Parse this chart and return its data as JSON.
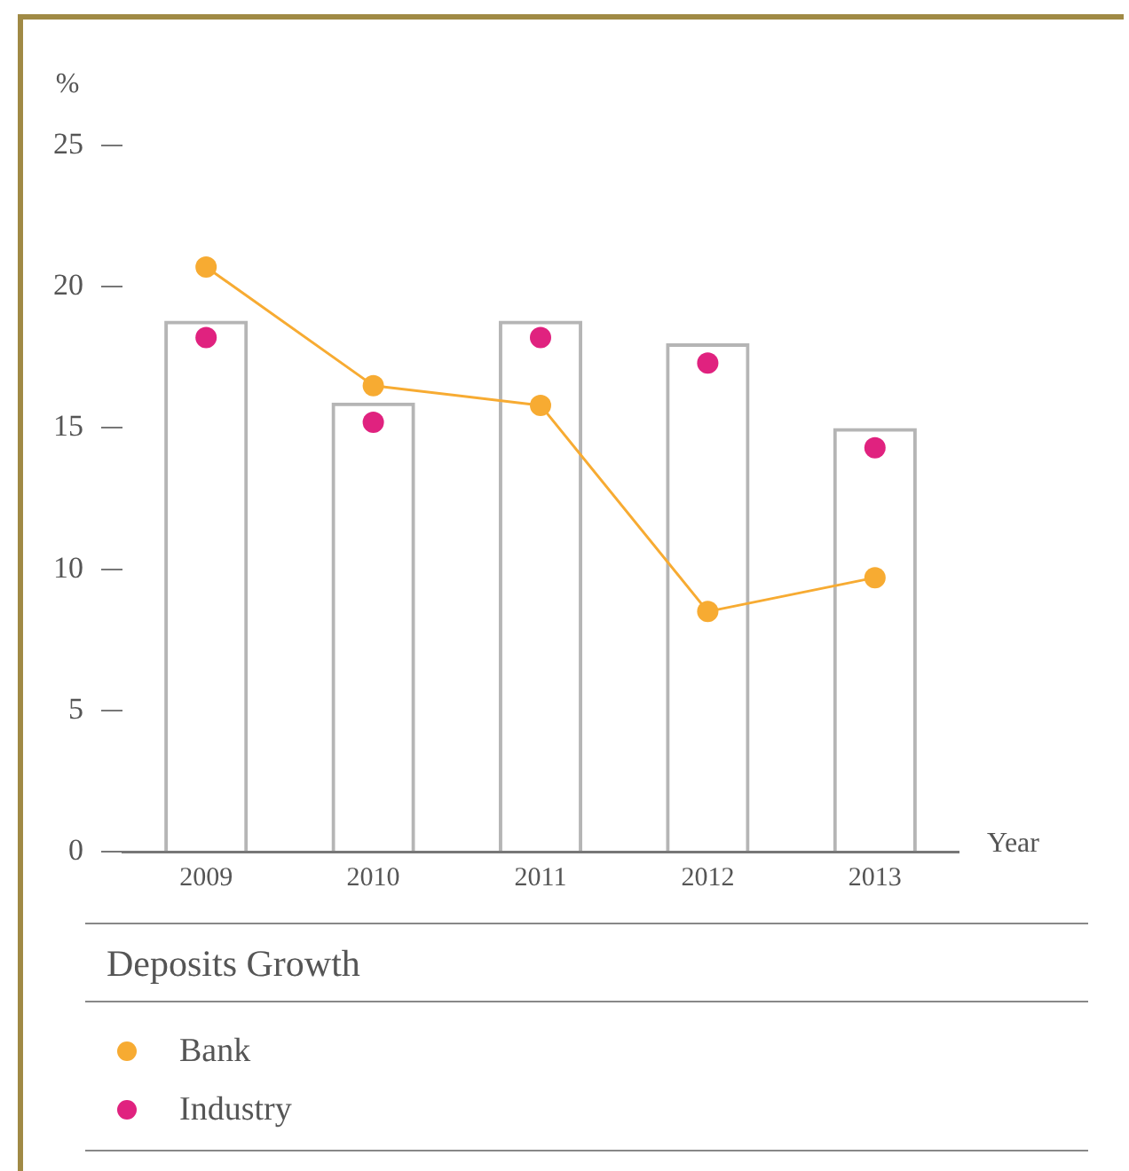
{
  "chart_data": {
    "type": "bar",
    "title": "Deposits Growth",
    "xlabel": "Year",
    "ylabel": "%",
    "categories": [
      "2009",
      "2010",
      "2011",
      "2012",
      "2013"
    ],
    "series": [
      {
        "color": "#b5b5b5",
        "values": [
          18.8,
          15.9,
          18.8,
          18.0,
          15.0
        ]
      },
      {
        "type": "line",
        "name": "Bank",
        "color": "#f7ab32",
        "values": [
          20.7,
          16.5,
          15.8,
          8.5,
          9.7
        ]
      },
      {
        "type": "scatter",
        "name": "Industry",
        "color": "#e0227f",
        "values": [
          18.2,
          15.2,
          18.2,
          17.3,
          14.3
        ]
      }
    ],
    "ylim": [
      0,
      25
    ],
    "yticks": [
      0,
      5,
      10,
      15,
      20,
      25
    ],
    "grid": false,
    "legend": "bottom",
    "marker": "circle"
  }
}
